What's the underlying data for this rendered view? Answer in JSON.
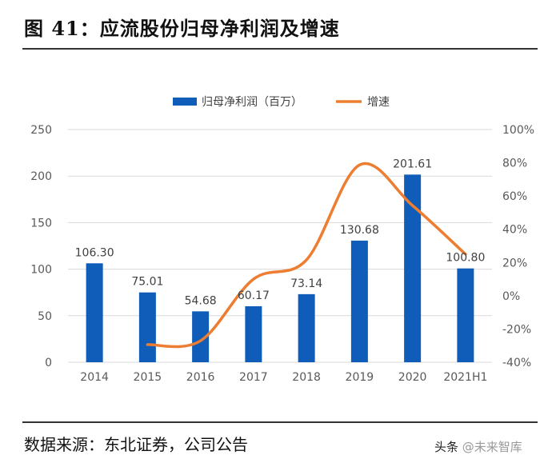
{
  "header": {
    "title": "图 41：应流股份归母净利润及增速"
  },
  "footer": {
    "source": "数据来源：东北证券，公司公告",
    "watermark_a": "头条 ",
    "watermark_b": "@未来智库"
  },
  "colors": {
    "bar": "#0F5DB8",
    "line": "#ED7D31",
    "grid": "#D9D9D9"
  },
  "chart_data": {
    "type": "bar+line",
    "title": "图 41：应流股份归母净利润及增速",
    "categories": [
      "2014",
      "2015",
      "2016",
      "2017",
      "2018",
      "2019",
      "2020",
      "2021H1"
    ],
    "series": [
      {
        "name": "归母净利润（百万）",
        "type": "bar",
        "axis": "left",
        "values": [
          106.3,
          75.01,
          54.68,
          60.17,
          73.14,
          130.68,
          201.61,
          100.8
        ],
        "labels": [
          "106.30",
          "75.01",
          "54.68",
          "60.17",
          "73.14",
          "130.68",
          "201.61",
          "100.80"
        ]
      },
      {
        "name": "增速",
        "type": "line",
        "axis": "right",
        "smooth": true,
        "values": [
          null,
          -29.4,
          -27.1,
          10.0,
          21.6,
          78.7,
          54.3,
          25.0
        ]
      }
    ],
    "left_axis": {
      "ylim": [
        0,
        250
      ],
      "ticks": [
        "0",
        "50",
        "100",
        "150",
        "200",
        "250"
      ]
    },
    "right_axis": {
      "ylim": [
        -40,
        100
      ],
      "ticks": [
        "-40%",
        "-20%",
        "0%",
        "20%",
        "40%",
        "60%",
        "80%",
        "100%"
      ]
    },
    "legend": "top-center",
    "grid": true
  }
}
